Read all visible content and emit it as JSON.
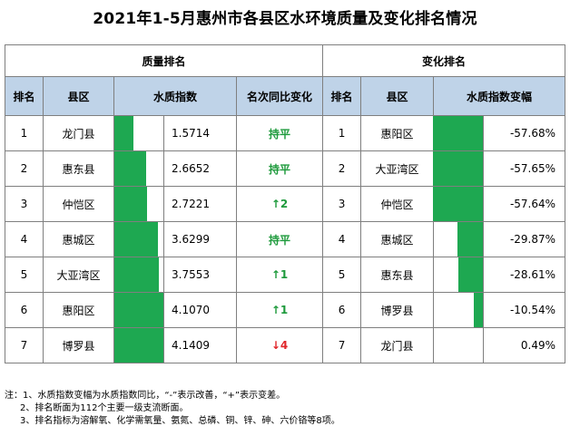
{
  "title": "2021年1-5月惠州市各县区水环境质量及变化排名情况",
  "groups": {
    "quality": "质量排名",
    "change": "变化排名"
  },
  "headers": {
    "rank": "排名",
    "county": "县区",
    "index": "水质指数",
    "yoy": "名次同比变化",
    "rank2": "排名",
    "county2": "县区",
    "change_pct": "水质指数变幅"
  },
  "quality_rows": [
    {
      "rank": "1",
      "county": "龙门县",
      "index": "1.5714",
      "index_value": 1.5714,
      "change": "持平",
      "change_kind": "flat"
    },
    {
      "rank": "2",
      "county": "惠东县",
      "index": "2.6652",
      "index_value": 2.6652,
      "change": "持平",
      "change_kind": "flat"
    },
    {
      "rank": "3",
      "county": "仲恺区",
      "index": "2.7221",
      "index_value": 2.7221,
      "change": "↑2",
      "change_kind": "up"
    },
    {
      "rank": "4",
      "county": "惠城区",
      "index": "3.6299",
      "index_value": 3.6299,
      "change": "持平",
      "change_kind": "flat"
    },
    {
      "rank": "5",
      "county": "大亚湾区",
      "index": "3.7553",
      "index_value": 3.7553,
      "change": "↑1",
      "change_kind": "up"
    },
    {
      "rank": "6",
      "county": "惠阳区",
      "index": "4.1070",
      "index_value": 4.107,
      "change": "↑1",
      "change_kind": "up"
    },
    {
      "rank": "7",
      "county": "博罗县",
      "index": "4.1409",
      "index_value": 4.1409,
      "change": "↓4",
      "change_kind": "down"
    }
  ],
  "change_rows": [
    {
      "rank": "1",
      "county": "惠阳区",
      "pct": "-57.68%",
      "pct_value": -57.68
    },
    {
      "rank": "2",
      "county": "大亚湾区",
      "pct": "-57.65%",
      "pct_value": -57.65
    },
    {
      "rank": "3",
      "county": "仲恺区",
      "pct": "-57.64%",
      "pct_value": -57.64
    },
    {
      "rank": "4",
      "county": "惠城区",
      "pct": "-29.87%",
      "pct_value": -29.87
    },
    {
      "rank": "5",
      "county": "惠东县",
      "pct": "-28.61%",
      "pct_value": -28.61
    },
    {
      "rank": "6",
      "county": "博罗县",
      "pct": "-10.54%",
      "pct_value": -10.54
    },
    {
      "rank": "7",
      "county": "龙门县",
      "pct": "0.49%",
      "pct_value": 0.49
    }
  ],
  "notes": [
    "注：1、水质指数变幅为水质指数同比，“-”表示改善，“+”表示变差。",
    "2、排名断面为112个主要一级支流断面。",
    "3、排名指标为溶解氧、化学需氧量、氨氮、总磷、铜、锌、砷、六价铬等8项。"
  ],
  "colors": {
    "bar": "#1ea851",
    "header_bg": "#bfd3e8",
    "flat": "#1e9a3c",
    "up": "#1e9a3c",
    "down": "#e0262a"
  }
}
